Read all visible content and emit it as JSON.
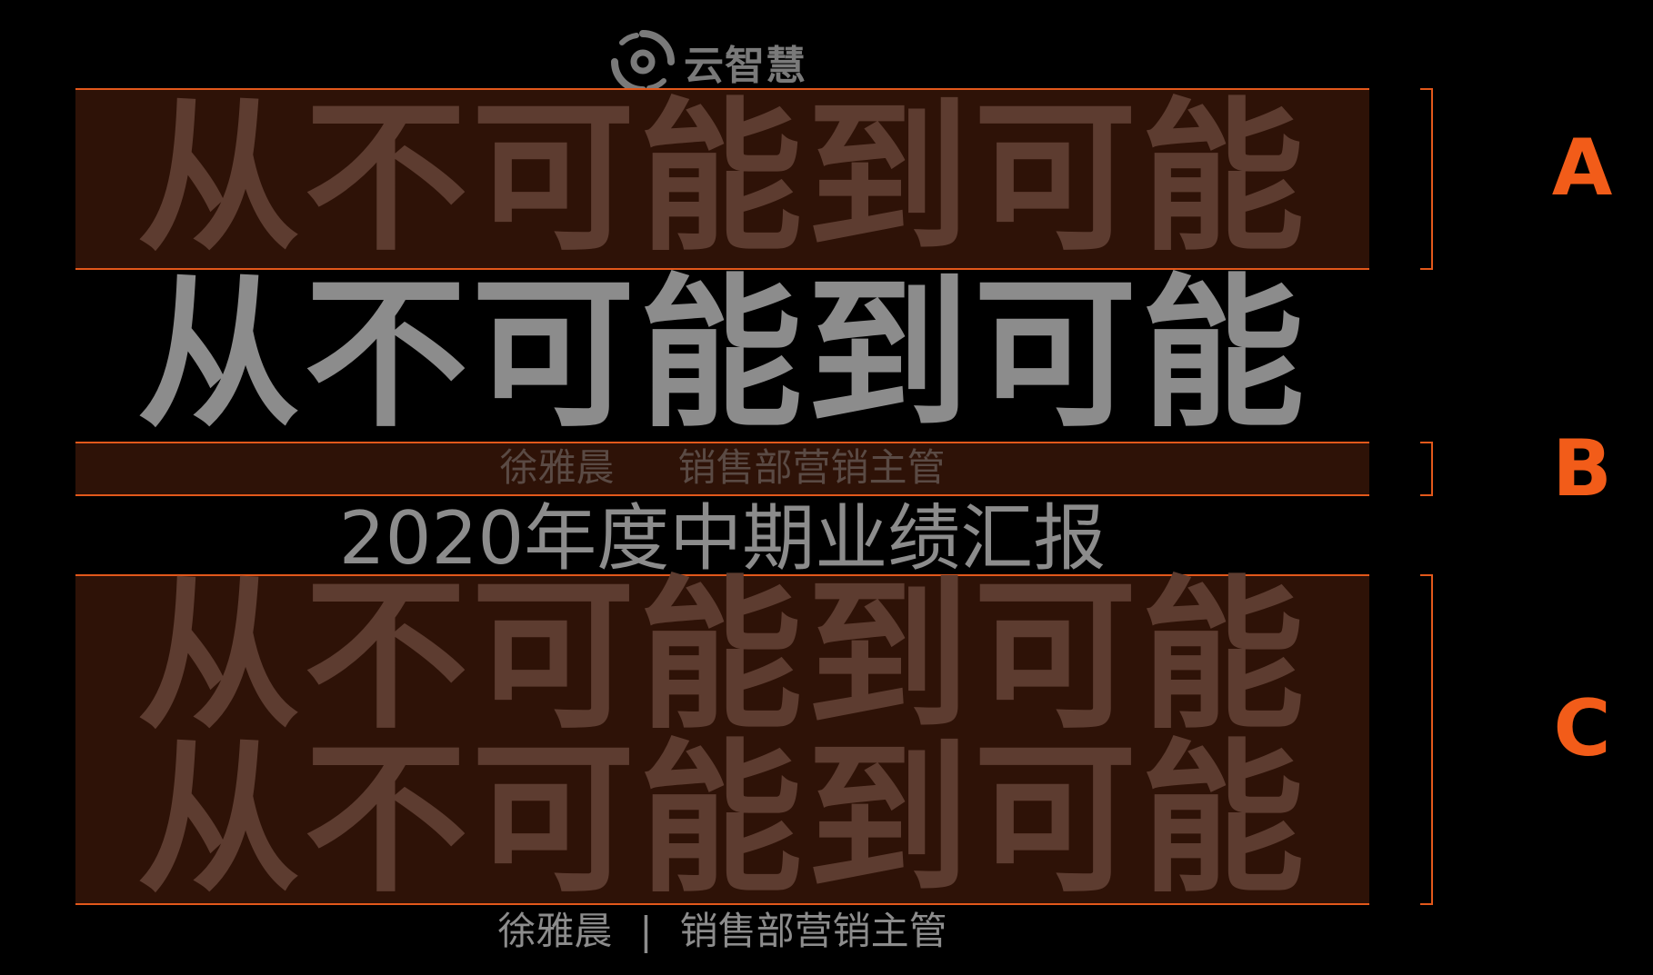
{
  "logo": {
    "text": "云智慧",
    "icon": "swirl-logo-icon"
  },
  "headline": "从不可能到可能",
  "subtitle": "2020年度中期业绩汇报",
  "presenter": {
    "name": "徐雅晨",
    "separator": "|",
    "title": "销售部营销主管"
  },
  "section_labels": {
    "a": "A",
    "b": "B",
    "c": "C"
  },
  "colors": {
    "accent": "#f25c19",
    "band_fill": "#2e1207",
    "faded_text": "#5d3c30",
    "solid_text": "#8c8c8c",
    "background": "#000000"
  }
}
